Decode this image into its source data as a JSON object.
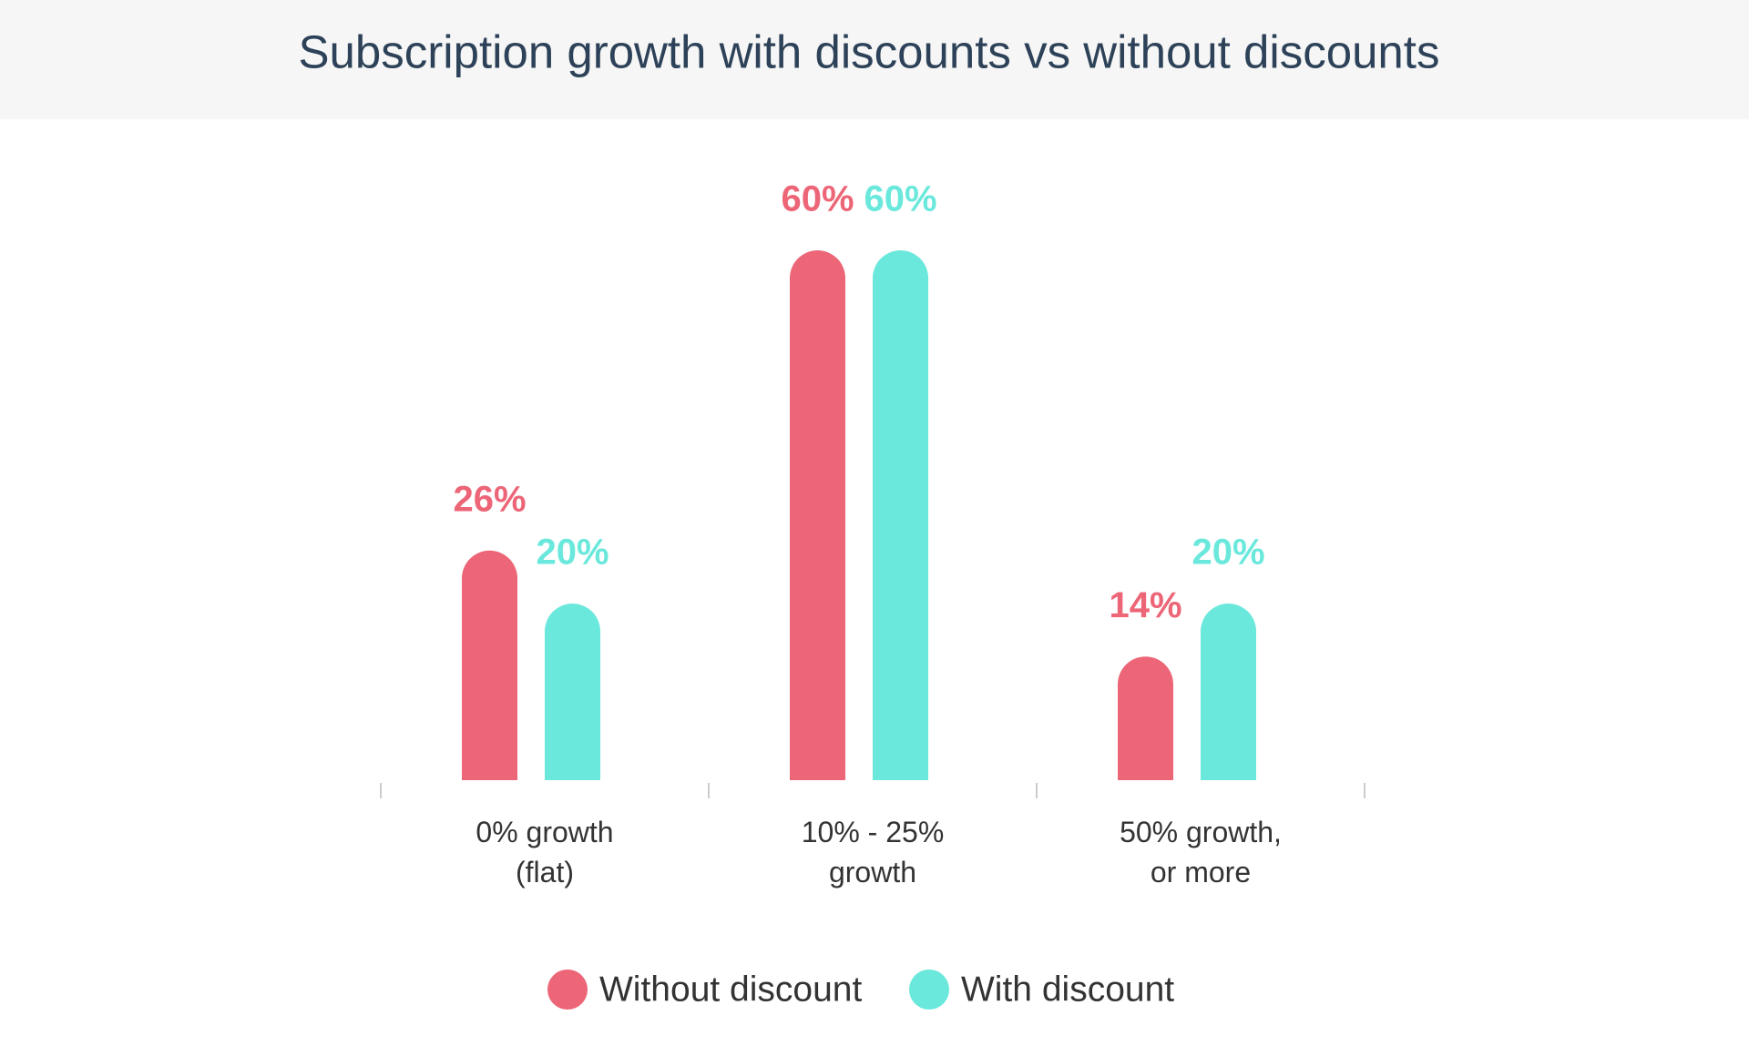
{
  "chart_data": {
    "type": "bar",
    "title": "Subscription growth with discounts vs without discounts",
    "categories": [
      "0% growth\n(flat)",
      "10% - 25%\ngrowth",
      "50% growth,\nor more"
    ],
    "series": [
      {
        "name": "Without discount",
        "color": "#ec6677",
        "values": [
          26,
          60,
          14
        ],
        "value_labels": [
          "26%",
          "60%",
          "14%"
        ]
      },
      {
        "name": "With discount",
        "color": "#6ae8dc",
        "values": [
          20,
          60,
          20
        ],
        "value_labels": [
          "20%",
          "60%",
          "20%"
        ]
      }
    ]
  }
}
